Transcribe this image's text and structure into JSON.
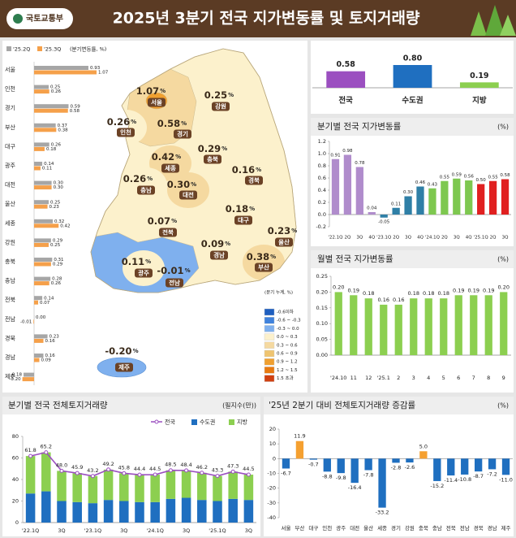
{
  "header": {
    "org": "국토교통부",
    "title": "2025년 3분기 전국 지가변동률 및 토지거래량"
  },
  "chart_data": [
    {
      "type": "hbar",
      "legend_note": "(분기변동률, %)",
      "categories": [
        "서울",
        "인천",
        "경기",
        "부산",
        "대구",
        "광주",
        "대전",
        "울산",
        "세종",
        "강원",
        "충북",
        "충남",
        "전북",
        "전남",
        "경북",
        "경남",
        "제주"
      ],
      "series": [
        {
          "name": "'25.2Q",
          "color": "#a6a6a6",
          "values": [
            0.93,
            0.25,
            0.59,
            0.37,
            0.26,
            0.14,
            0.3,
            0.25,
            0.32,
            0.29,
            0.31,
            0.28,
            0.14,
            0,
            0.23,
            0.16,
            -0.18
          ],
          "value_labels": [
            "0.93",
            "0.25",
            "0.59",
            "0.37",
            "0.26",
            "0.14",
            "0.30",
            "0.25",
            "0.32",
            "0.29",
            "0.31",
            "0.28",
            "0.14",
            "0.00",
            "0.23",
            "0.16",
            "-0.18"
          ]
        },
        {
          "name": "'25.3Q",
          "color": "#f5a04a",
          "values": [
            1.07,
            0.26,
            0.58,
            0.38,
            0.18,
            0.11,
            0.3,
            0.23,
            0.42,
            0.25,
            0.29,
            0.26,
            0.07,
            -0.01,
            0.16,
            0.09,
            -0.2
          ],
          "value_labels": [
            "1.07",
            "0.26",
            "0.58",
            "0.38",
            "0.18",
            "0.11",
            "0.30",
            "0.23",
            "0.42",
            "0.25",
            "0.29",
            "0.26",
            "0.07",
            "-0.01",
            "0.16",
            "0.09",
            "-0.20"
          ]
        }
      ]
    },
    {
      "type": "map",
      "unit": "%",
      "legend_title": "(분기 누계, %)",
      "legend": [
        {
          "label": "-0.6이하",
          "color": "#1f5fbf"
        },
        {
          "label": "-0.6 ~ -0.3",
          "color": "#3f82dc"
        },
        {
          "label": "-0.3 ~ 0.0",
          "color": "#7fb0ee"
        },
        {
          "label": "0.0 ~ 0.3",
          "color": "#fcf1cc"
        },
        {
          "label": "0.3 ~ 0.6",
          "color": "#f5d9a0"
        },
        {
          "label": "0.6 ~ 0.9",
          "color": "#efc470"
        },
        {
          "label": "0.9 ~ 1.2",
          "color": "#f0a030"
        },
        {
          "label": "1.2 ~ 1.5",
          "color": "#e87a10"
        },
        {
          "label": "1.5 초과",
          "color": "#d04010"
        }
      ],
      "regions": [
        {
          "name": "서울",
          "value": 1.07,
          "value_label": "1.07",
          "color": "#f0a030"
        },
        {
          "name": "인천",
          "value": 0.26,
          "value_label": "0.26",
          "color": "#fcf1cc"
        },
        {
          "name": "경기",
          "value": 0.58,
          "value_label": "0.58",
          "color": "#f5d9a0"
        },
        {
          "name": "강원",
          "value": 0.25,
          "value_label": "0.25",
          "color": "#fcf1cc"
        },
        {
          "name": "세종",
          "value": 0.42,
          "value_label": "0.42",
          "color": "#f5d9a0"
        },
        {
          "name": "충북",
          "value": 0.29,
          "value_label": "0.29",
          "color": "#fcf1cc"
        },
        {
          "name": "충남",
          "value": 0.26,
          "value_label": "0.26",
          "color": "#fcf1cc"
        },
        {
          "name": "대전",
          "value": 0.3,
          "value_label": "0.30",
          "color": "#f5d9a0"
        },
        {
          "name": "경북",
          "value": 0.16,
          "value_label": "0.16",
          "color": "#fcf1cc"
        },
        {
          "name": "대구",
          "value": 0.18,
          "value_label": "0.18",
          "color": "#fcf1cc"
        },
        {
          "name": "전북",
          "value": 0.07,
          "value_label": "0.07",
          "color": "#fcf1cc"
        },
        {
          "name": "울산",
          "value": 0.23,
          "value_label": "0.23",
          "color": "#fcf1cc"
        },
        {
          "name": "경남",
          "value": 0.09,
          "value_label": "0.09",
          "color": "#fcf1cc"
        },
        {
          "name": "부산",
          "value": 0.38,
          "value_label": "0.38",
          "color": "#f5d9a0"
        },
        {
          "name": "광주",
          "value": 0.11,
          "value_label": "0.11",
          "color": "#fcf1cc"
        },
        {
          "name": "전남",
          "value": -0.01,
          "value_label": "-0.01",
          "color": "#7fb0ee"
        },
        {
          "name": "제주",
          "value": -0.2,
          "value_label": "-0.20",
          "color": "#7fb0ee"
        }
      ]
    },
    {
      "type": "bar",
      "categories": [
        "전국",
        "수도권",
        "지방"
      ],
      "values": [
        0.58,
        0.8,
        0.19
      ],
      "value_labels": [
        "0.58",
        "0.80",
        "0.19"
      ],
      "colors": [
        "#9b4fc0",
        "#1f6fc0",
        "#8ccf50"
      ]
    },
    {
      "type": "bar",
      "title": "분기별 전국 지가변동률",
      "unit_label": "(%)",
      "categories": [
        "'22.1Q",
        "2Q",
        "3Q",
        "4Q",
        "'23.1Q",
        "2Q",
        "3Q",
        "4Q",
        "'24.1Q",
        "2Q",
        "3Q",
        "4Q",
        "'25.1Q",
        "2Q",
        "3Q"
      ],
      "values": [
        0.91,
        0.98,
        0.78,
        0.04,
        -0.05,
        0.11,
        0.3,
        0.46,
        0.43,
        0.55,
        0.59,
        0.56,
        0.5,
        0.55,
        0.58
      ],
      "value_labels": [
        "0.91",
        "0.98",
        "0.78",
        "0.04",
        "-0.05",
        "0.11",
        "0.30",
        "0.46",
        "0.43",
        "0.55",
        "0.59",
        "0.56",
        "0.50",
        "0.55",
        "0.58"
      ],
      "colors": [
        "#b08ccc",
        "#b08ccc",
        "#b08ccc",
        "#b08ccc",
        "#2f7fa6",
        "#2f7fa6",
        "#2f7fa6",
        "#2f7fa6",
        "#7ec850",
        "#7ec850",
        "#7ec850",
        "#7ec850",
        "#e02020",
        "#e02020",
        "#e02020"
      ],
      "ylim": [
        -0.2,
        1.2
      ],
      "yticks": [
        {
          "value": -0.2,
          "label": "-0.2"
        },
        {
          "value": 0,
          "label": "0.0"
        },
        {
          "value": 0.2,
          "label": "0.2"
        },
        {
          "value": 0.4,
          "label": "0.4"
        },
        {
          "value": 0.6,
          "label": "0.6"
        },
        {
          "value": 0.8,
          "label": "0.8"
        },
        {
          "value": 1,
          "label": "1.0"
        },
        {
          "value": 1.2,
          "label": "1.2"
        }
      ],
      "grid": false
    },
    {
      "type": "bar",
      "title": "월별 전국 지가변동률",
      "unit_label": "(%)",
      "categories": [
        "'24.10",
        "11",
        "12",
        "'25.1",
        "2",
        "3",
        "4",
        "5",
        "6",
        "7",
        "8",
        "9"
      ],
      "values": [
        0.2,
        0.19,
        0.18,
        0.16,
        0.16,
        0.18,
        0.18,
        0.18,
        0.19,
        0.19,
        0.19,
        0.2
      ],
      "value_labels": [
        "0.20",
        "0.19",
        "0.18",
        "0.16",
        "0.16",
        "0.18",
        "0.18",
        "0.18",
        "0.19",
        "0.19",
        "0.19",
        "0.20"
      ],
      "color": "#8ccf50",
      "ylim": [
        0,
        0.25
      ],
      "yticks": [
        {
          "value": 0,
          "label": "0.00"
        },
        {
          "value": 0.05,
          "label": "0.05"
        },
        {
          "value": 0.1,
          "label": "0.10"
        },
        {
          "value": 0.15,
          "label": "0.15"
        },
        {
          "value": 0.2,
          "label": "0.20"
        },
        {
          "value": 0.25,
          "label": "0.25"
        }
      ],
      "grid": false
    },
    {
      "type": "stacked-bar",
      "title": "분기별 전국 전체토지거래량",
      "unit_label": "(필지수(만))",
      "categories": [
        "'22.1Q",
        null,
        "3Q",
        null,
        "'23.1Q",
        null,
        "3Q",
        null,
        "'24.1Q",
        null,
        "3Q",
        null,
        "'25.1Q",
        null,
        "3Q"
      ],
      "series": [
        {
          "name": "전국",
          "type": "line",
          "color": "#9b4fc0",
          "values": [
            61.8,
            65.2,
            48,
            45.9,
            43.2,
            49.2,
            45.8,
            44.4,
            44.5,
            48.5,
            48.4,
            46.2,
            43.3,
            47.3,
            44.5
          ],
          "value_labels": [
            "61.8",
            "65.2",
            "48.0",
            "45.9",
            "43.2",
            "49.2",
            "45.8",
            "44.4",
            "44.5",
            "48.5",
            "48.4",
            "46.2",
            "43.3",
            "47.3",
            "44.5"
          ]
        },
        {
          "name": "수도권",
          "color": "#1f6fc0",
          "values": [
            27,
            29,
            20,
            19,
            18,
            21,
            20,
            19,
            19,
            22,
            23,
            21,
            20,
            22,
            21
          ]
        },
        {
          "name": "지방",
          "color": "#8ccf50",
          "values": [
            34.8,
            36.2,
            28,
            26.9,
            25.2,
            28.2,
            25.8,
            25.4,
            25.5,
            26.5,
            25.4,
            25.2,
            23.3,
            25.3,
            23.5
          ]
        }
      ],
      "ylim": [
        0,
        80
      ],
      "yticks": [
        0,
        20,
        40,
        60,
        80
      ],
      "grid": false
    },
    {
      "type": "bar",
      "title": "'25년 2분기 대비 전체토지거래량 증감률",
      "unit_label": "(%)",
      "categories": [
        "서울",
        "부산",
        "대구",
        "인천",
        "광주",
        "대전",
        "울산",
        "세종",
        "경기",
        "강원",
        "충북",
        "충남",
        "전북",
        "전남",
        "경북",
        "경남",
        "제주"
      ],
      "values": [
        -6.7,
        11.9,
        -0.7,
        -8.8,
        -9.8,
        -16.4,
        -7.8,
        -33.2,
        -2.8,
        -2.6,
        5,
        -15.2,
        -11.4,
        -10.8,
        -8.7,
        -7.2,
        -11
      ],
      "value_labels": [
        "-6.7",
        "11.9",
        "-0.7",
        "-8.8",
        "-9.8",
        "-16.4",
        "-7.8",
        "-33.2",
        "-2.8",
        "-2.6",
        "5.0",
        "-15.2",
        "-11.4",
        "-10.8",
        "-8.7",
        "-7.2",
        "-11.0"
      ],
      "positive_color": "#f5a030",
      "negative_color": "#1f6fc0",
      "ylim": [
        -40,
        20
      ],
      "yticks": [
        -40,
        -30,
        -20,
        -10,
        0,
        10,
        20
      ],
      "grid": false
    }
  ]
}
